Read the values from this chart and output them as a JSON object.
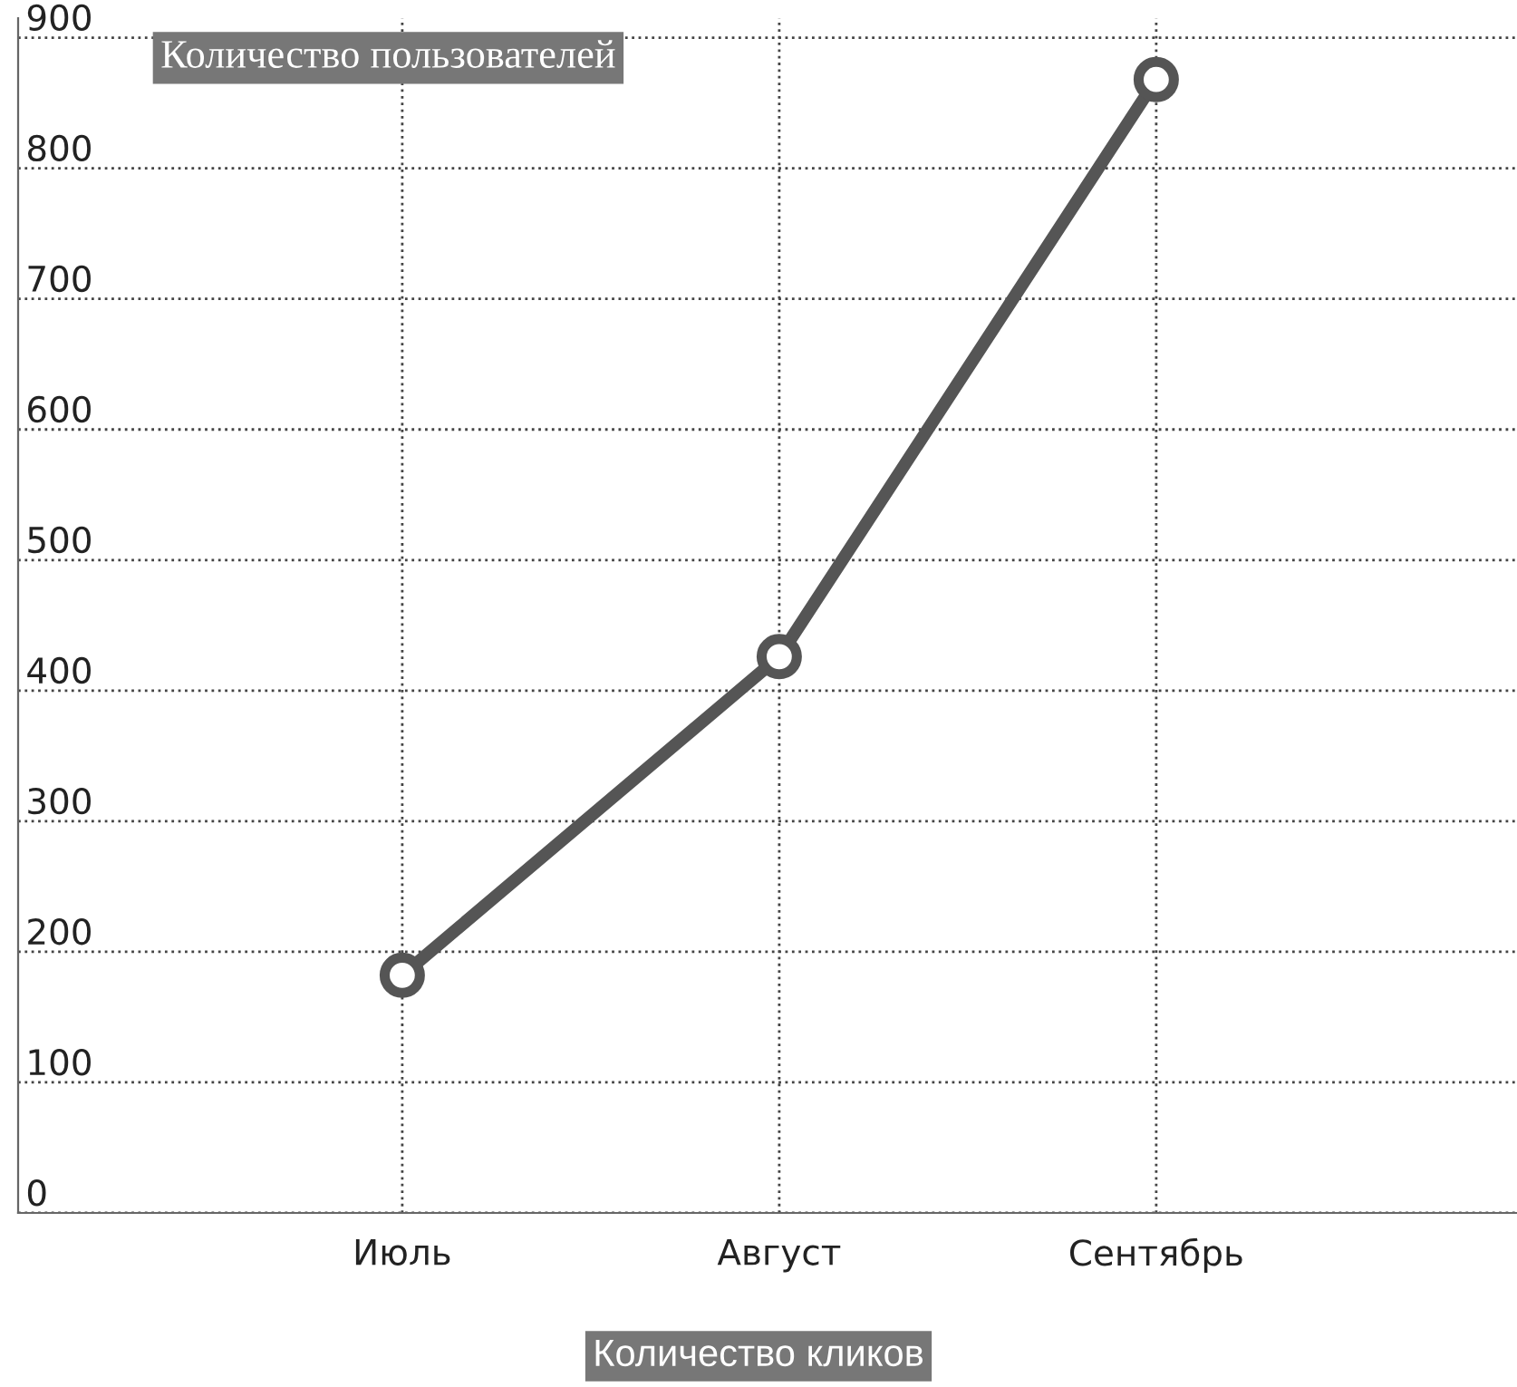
{
  "chart_data": {
    "type": "line",
    "title": "Количество пользователей",
    "xlabel": "Количество кликов",
    "categories": [
      "Июль",
      "Август",
      "Сентябрь"
    ],
    "series": [
      {
        "color": "#555555",
        "values": [
          182,
          426,
          868
        ]
      }
    ],
    "ylim": [
      0,
      915
    ],
    "yticks": [
      0,
      100,
      200,
      300,
      400,
      500,
      600,
      700,
      800,
      900
    ],
    "grid": true,
    "marker": "circle",
    "line_style": "solid"
  }
}
